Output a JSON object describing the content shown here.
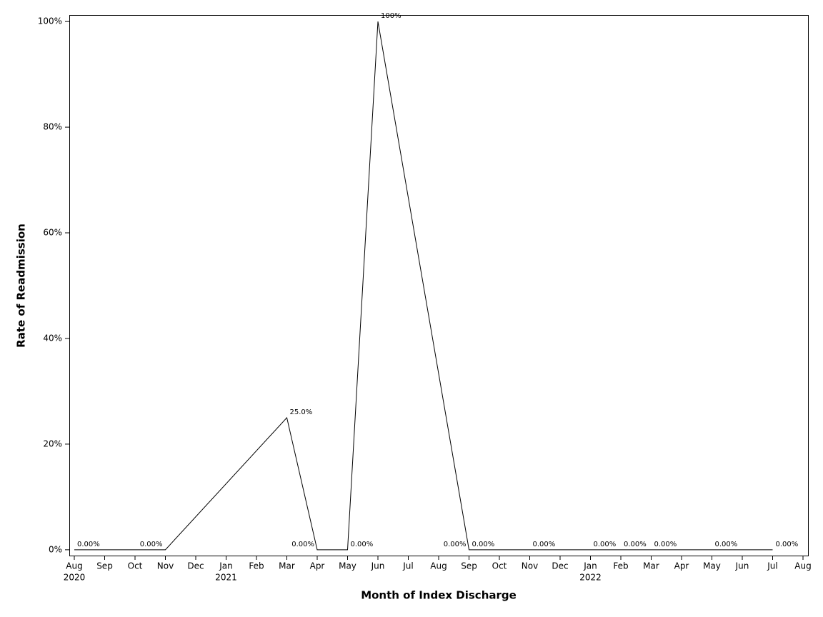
{
  "chart_data": {
    "type": "line",
    "x_title": "Month of Index Discharge",
    "y_title": "Rate of Readmission",
    "x": [
      "2020-08",
      "2020-11",
      "2021-03",
      "2021-04",
      "2021-05",
      "2021-06",
      "2021-09",
      "2021-09",
      "2021-11",
      "2022-01",
      "2022-02",
      "2022-03",
      "2022-05",
      "2022-07"
    ],
    "series": [
      {
        "name": "Rate of Readmission",
        "color": "#000000",
        "values": [
          0,
          0,
          25,
          0,
          0,
          100,
          0,
          0,
          0,
          0,
          0,
          0,
          0,
          0
        ],
        "value_labels": [
          "0.00%",
          "0.00%",
          "25.0%",
          "0.00%",
          "0.00%",
          "100%",
          "0.00%",
          "0.00%",
          "0.00%",
          "0.00%",
          "0.00%",
          "0.00%",
          "0.00%",
          "0.00%"
        ]
      }
    ],
    "xlim": [
      "2020-08",
      "2022-08"
    ],
    "xticks": [
      {
        "value": "2020-08",
        "label": "Aug"
      },
      {
        "value": "2020-09",
        "label": "Sep"
      },
      {
        "value": "2020-10",
        "label": "Oct"
      },
      {
        "value": "2020-11",
        "label": "Nov"
      },
      {
        "value": "2020-12",
        "label": "Dec"
      },
      {
        "value": "2021-01",
        "label": "Jan"
      },
      {
        "value": "2021-02",
        "label": "Feb"
      },
      {
        "value": "2021-03",
        "label": "Mar"
      },
      {
        "value": "2021-04",
        "label": "Apr"
      },
      {
        "value": "2021-05",
        "label": "May"
      },
      {
        "value": "2021-06",
        "label": "Jun"
      },
      {
        "value": "2021-07",
        "label": "Jul"
      },
      {
        "value": "2021-08",
        "label": "Aug"
      },
      {
        "value": "2021-09",
        "label": "Sep"
      },
      {
        "value": "2021-10",
        "label": "Oct"
      },
      {
        "value": "2021-11",
        "label": "Nov"
      },
      {
        "value": "2021-12",
        "label": "Dec"
      },
      {
        "value": "2022-01",
        "label": "Jan"
      },
      {
        "value": "2022-02",
        "label": "Feb"
      },
      {
        "value": "2022-03",
        "label": "Mar"
      },
      {
        "value": "2022-04",
        "label": "Apr"
      },
      {
        "value": "2022-05",
        "label": "May"
      },
      {
        "value": "2022-06",
        "label": "Jun"
      },
      {
        "value": "2022-07",
        "label": "Jul"
      },
      {
        "value": "2022-08",
        "label": "Aug"
      }
    ],
    "xtick_years": [
      {
        "value": "2020-08",
        "label": "2020"
      },
      {
        "value": "2021-01",
        "label": "2021"
      },
      {
        "value": "2022-01",
        "label": "2022"
      }
    ],
    "ylim": [
      -1.1,
      101.1
    ],
    "yticks": [
      {
        "value": 0,
        "label": "0%"
      },
      {
        "value": 20,
        "label": "20%"
      },
      {
        "value": 40,
        "label": "40%"
      },
      {
        "value": 60,
        "label": "60%"
      },
      {
        "value": 80,
        "label": "80%"
      },
      {
        "value": 100,
        "label": "100%"
      }
    ],
    "grid": false
  }
}
